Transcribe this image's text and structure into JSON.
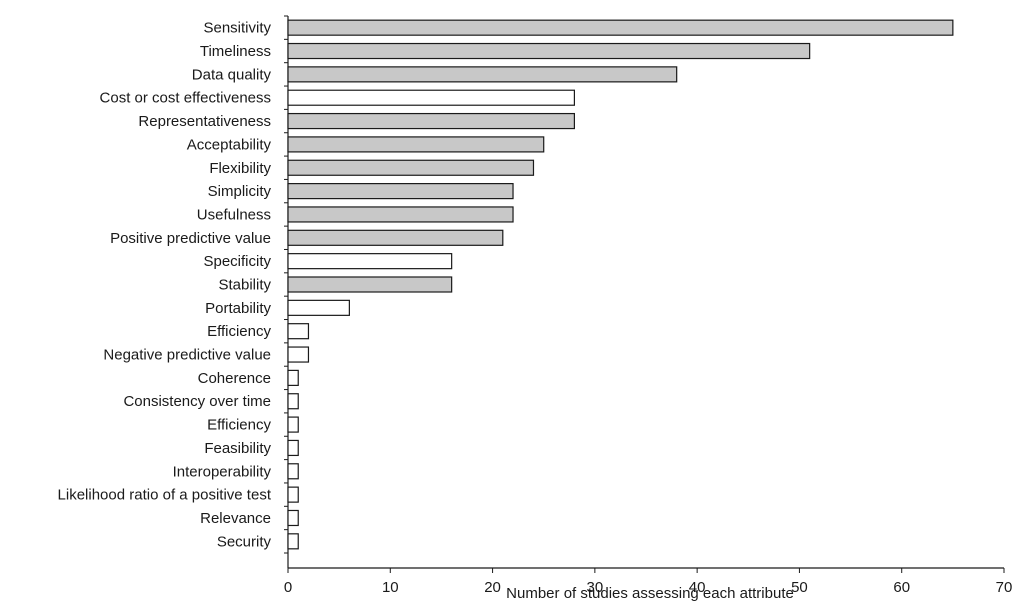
{
  "chart_data": {
    "type": "bar",
    "orientation": "horizontal",
    "categories": [
      "Sensitivity",
      "Timeliness",
      "Data quality",
      "Cost or cost effectiveness",
      "Representativeness",
      "Acceptability",
      "Flexibility",
      "Simplicity",
      "Usefulness",
      "Positive predictive value",
      "Specificity",
      "Stability",
      "Portability",
      "Efficiency",
      "Negative predictive value",
      "Coherence",
      "Consistency over time",
      "Efficiency",
      "Feasibility",
      "Interoperability",
      "Likelihood ratio of a positive test",
      "Relevance",
      "Security"
    ],
    "values": [
      65,
      51,
      38,
      28,
      28,
      25,
      24,
      22,
      22,
      21,
      16,
      16,
      6,
      2,
      2,
      1,
      1,
      1,
      1,
      1,
      1,
      1,
      1
    ],
    "shaded": [
      true,
      true,
      true,
      false,
      true,
      true,
      true,
      true,
      true,
      true,
      false,
      true,
      false,
      false,
      false,
      false,
      false,
      false,
      false,
      false,
      false,
      false,
      false
    ],
    "colors": {
      "shaded": "#c8c8c8",
      "unshaded": "#ffffff",
      "stroke": "#1a1a1a"
    },
    "xlabel": "Number of studies assessing each attribute",
    "ylabel": "",
    "title": "",
    "xlim": [
      0,
      70
    ],
    "xticks": [
      0,
      10,
      20,
      30,
      40,
      50,
      60,
      70
    ],
    "grid": false,
    "legend": "none"
  }
}
